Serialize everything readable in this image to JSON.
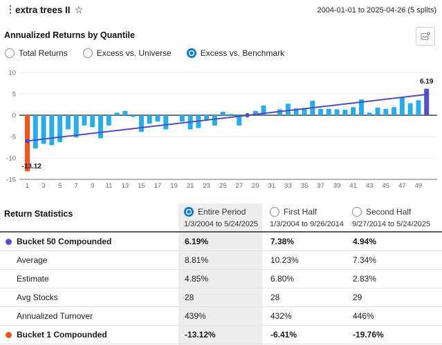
{
  "header": {
    "title": "extra trees II",
    "date_range": "2004-01-01 to 2025-04-26 (5 splits)"
  },
  "section": {
    "title": "Annualized Returns by Quantile"
  },
  "view_options": {
    "options": [
      {
        "label": "Total Returns",
        "selected": false
      },
      {
        "label": "Excess vs. Universe",
        "selected": false
      },
      {
        "label": "Excess vs. Benchmark",
        "selected": true
      }
    ]
  },
  "chart_data": {
    "type": "bar",
    "title": "Annualized Returns by Quantile",
    "legend": "none",
    "grid": true,
    "ylim": [
      -15,
      10
    ],
    "y_ticks": [
      10,
      5,
      0,
      -5,
      -10,
      -15
    ],
    "categories": [
      1,
      2,
      3,
      4,
      5,
      6,
      7,
      8,
      9,
      10,
      11,
      12,
      13,
      14,
      15,
      16,
      17,
      18,
      19,
      20,
      21,
      22,
      23,
      24,
      25,
      26,
      27,
      28,
      29,
      30,
      31,
      32,
      33,
      34,
      35,
      36,
      37,
      38,
      39,
      40,
      41,
      42,
      43,
      44,
      45,
      46,
      47,
      48,
      49,
      50
    ],
    "values": [
      -13.12,
      -7.8,
      -6.7,
      -7.0,
      -6.3,
      -3.3,
      -5.2,
      -2.4,
      -2.8,
      -5.4,
      -2.4,
      0.6,
      1.0,
      -0.4,
      -3.9,
      -2.0,
      -1.5,
      -3.3,
      0,
      -1.5,
      -3.3,
      -3.0,
      -1.2,
      -2.4,
      0.8,
      0.3,
      -2.4,
      0,
      1.0,
      2.3,
      0,
      1.4,
      2.7,
      1.6,
      1.7,
      3.4,
      1.5,
      1.5,
      1.4,
      1.3,
      1.9,
      3.7,
      0.6,
      1.8,
      1.5,
      1.9,
      4.1,
      2.8,
      3.5,
      6.19
    ],
    "bar_color": "#2aace8",
    "bucket1_color": "#f4541e",
    "bucket50_color": "#5551c8",
    "trend_line": {
      "from_bucket": 1,
      "from_value": -6.0,
      "to_bucket": 50,
      "to_value": 4.85,
      "color": "#4f49c4",
      "markers": [
        {
          "bucket": 1,
          "value": -6.0
        },
        {
          "bucket": 28,
          "value": 0
        }
      ]
    },
    "annotations": [
      {
        "bucket": 50,
        "text": "6.19"
      },
      {
        "bucket": 1,
        "text": "-13.12"
      }
    ]
  },
  "table": {
    "title": "Return Statistics",
    "periods": [
      {
        "label": "Entire Period",
        "date_range": "1/3/2004 to 5/24/2025",
        "selected": true
      },
      {
        "label": "First Half",
        "date_range": "1/3/2004 to 9/26/2014",
        "selected": false
      },
      {
        "label": "Second Half",
        "date_range": "9/27/2014 to 5/24/2025",
        "selected": false
      }
    ],
    "rows": [
      {
        "label": "Bucket 50 Compounded",
        "bold": true,
        "dot_color": "#5551c8",
        "values": [
          "6.19%",
          "7.38%",
          "4.94%"
        ]
      },
      {
        "label": "Average",
        "bold": false,
        "dot_color": null,
        "values": [
          "8.81%",
          "10.23%",
          "7.34%"
        ]
      },
      {
        "label": "Estimate",
        "bold": false,
        "dot_color": null,
        "values": [
          "4.85%",
          "6.80%",
          "2.83%"
        ]
      },
      {
        "label": "Avg Stocks",
        "bold": false,
        "dot_color": null,
        "values": [
          "28",
          "28",
          "29"
        ]
      },
      {
        "label": "Annualized Turnover",
        "bold": false,
        "dot_color": null,
        "values": [
          "439%",
          "432%",
          "446%"
        ]
      },
      {
        "label": "Bucket 1 Compounded",
        "bold": true,
        "dot_color": "#f4541e",
        "values": [
          "-13.12%",
          "-6.41%",
          "-19.76%"
        ]
      }
    ]
  },
  "icons": {
    "star": "☆",
    "kebab": "⋮"
  }
}
